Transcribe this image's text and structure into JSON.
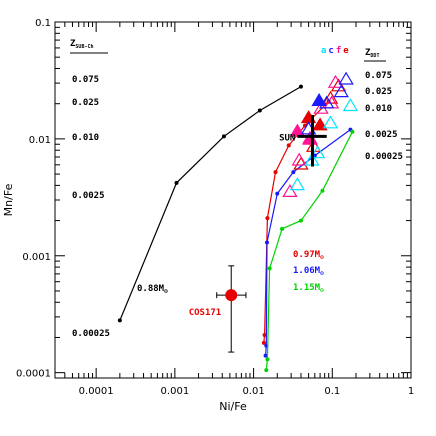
{
  "chart_data": {
    "type": "scatter",
    "x_scale": "log",
    "y_scale": "log",
    "xlim": [
      3e-05,
      1
    ],
    "ylim": [
      9e-05,
      0.1
    ],
    "xlabel": "Ni/Fe",
    "ylabel": "Mn/Fe",
    "x_ticks": [
      {
        "value": 0.0001,
        "label": "0.0001"
      },
      {
        "value": 0.001,
        "label": "0.001"
      },
      {
        "value": 0.01,
        "label": "0.01"
      },
      {
        "value": 0.1,
        "label": "0.1"
      },
      {
        "value": 1,
        "label": "1"
      }
    ],
    "y_ticks": [
      {
        "value": 0.0001,
        "label": "0.0001"
      },
      {
        "value": 0.001,
        "label": "0.001"
      },
      {
        "value": 0.01,
        "label": "0.01"
      },
      {
        "value": 0.1,
        "label": "0.1"
      }
    ],
    "z_sub_ch_heading": "Z",
    "z_sub_ch_subscript": "SUB-Ch",
    "z_sub_ch_values": [
      "0.075",
      "0.025",
      "0.010",
      "0.0025",
      "0.00025"
    ],
    "z_ddt_heading": "Z",
    "z_ddt_subscript": "DDT",
    "z_ddt_values": [
      "0.075",
      "0.025",
      "0.010",
      "0.0025",
      "0.00025"
    ],
    "abc_letters": [
      {
        "text": "a",
        "color": "#00e5ff"
      },
      {
        "text": "c",
        "color": "#1a1aff"
      },
      {
        "text": "f",
        "color": "#ff1493"
      },
      {
        "text": "e",
        "color": "#e60000"
      }
    ],
    "series": [
      {
        "name": "0.88M",
        "subscript": "⊙",
        "color": "#000000",
        "x": [
          0.0002,
          0.00105,
          0.0042,
          0.012,
          0.04
        ],
        "y": [
          0.00028,
          0.0042,
          0.0105,
          0.0175,
          0.028
        ]
      },
      {
        "name": "0.97M",
        "subscript": "⊙",
        "color": "#e60000",
        "x": [
          0.0135,
          0.0138,
          0.015,
          0.019,
          0.028,
          0.045,
          0.09
        ],
        "y": [
          0.00018,
          0.00021,
          0.0021,
          0.0052,
          0.0088,
          0.013,
          0.021
        ]
      },
      {
        "name": "1.06M",
        "subscript": "⊙",
        "color": "#1a1aff",
        "x": [
          0.0142,
          0.0145,
          0.0148,
          0.02,
          0.032,
          0.06,
          0.17
        ],
        "y": [
          0.00014,
          0.00017,
          0.0013,
          0.0034,
          0.0052,
          0.0072,
          0.012
        ]
      },
      {
        "name": "1.15M",
        "subscript": "⊙",
        "color": "#00d400",
        "x": [
          0.0145,
          0.015,
          0.016,
          0.023,
          0.04,
          0.075,
          0.18
        ],
        "y": [
          0.000105,
          0.00013,
          0.00078,
          0.0017,
          0.002,
          0.0036,
          0.0115
        ]
      }
    ],
    "triangles": [
      {
        "color": "#e60000",
        "filled": false,
        "x": [
          0.04,
          0.058,
          0.095,
          0.12
        ],
        "y": [
          0.006,
          0.0085,
          0.022,
          0.028
        ]
      },
      {
        "color": "#e60000",
        "filled": true,
        "x": [
          0.05,
          0.07
        ],
        "y": [
          0.015,
          0.013
        ]
      },
      {
        "color": "#ff1493",
        "filled": false,
        "x": [
          0.029,
          0.038,
          0.052,
          0.072,
          0.098,
          0.11
        ],
        "y": [
          0.0035,
          0.0065,
          0.01,
          0.018,
          0.02,
          0.03
        ]
      },
      {
        "color": "#ff1493",
        "filled": true,
        "x": [
          0.036,
          0.052
        ],
        "y": [
          0.0115,
          0.0098
        ]
      },
      {
        "color": "#1a1aff",
        "filled": false,
        "x": [
          0.05,
          0.085,
          0.13,
          0.15
        ],
        "y": [
          0.012,
          0.02,
          0.025,
          0.032
        ]
      },
      {
        "color": "#1a1aff",
        "filled": true,
        "x": [
          0.068
        ],
        "y": [
          0.021
        ]
      },
      {
        "color": "#00e5ff",
        "filled": false,
        "x": [
          0.036,
          0.055,
          0.065,
          0.095,
          0.17
        ],
        "y": [
          0.004,
          0.0065,
          0.0075,
          0.0135,
          0.019
        ]
      }
    ],
    "sun": {
      "label": "SUN",
      "x": 0.056,
      "y": 0.0105,
      "x_err": [
        0.036,
        0.085
      ],
      "y_err": [
        0.0058,
        0.016
      ]
    },
    "cos171": {
      "label": "COS171",
      "color": "#e60000",
      "x": 0.0052,
      "y": 0.00046,
      "x_err": [
        0.0034,
        0.008
      ],
      "y_err": [
        0.00015,
        0.00082
      ]
    }
  }
}
